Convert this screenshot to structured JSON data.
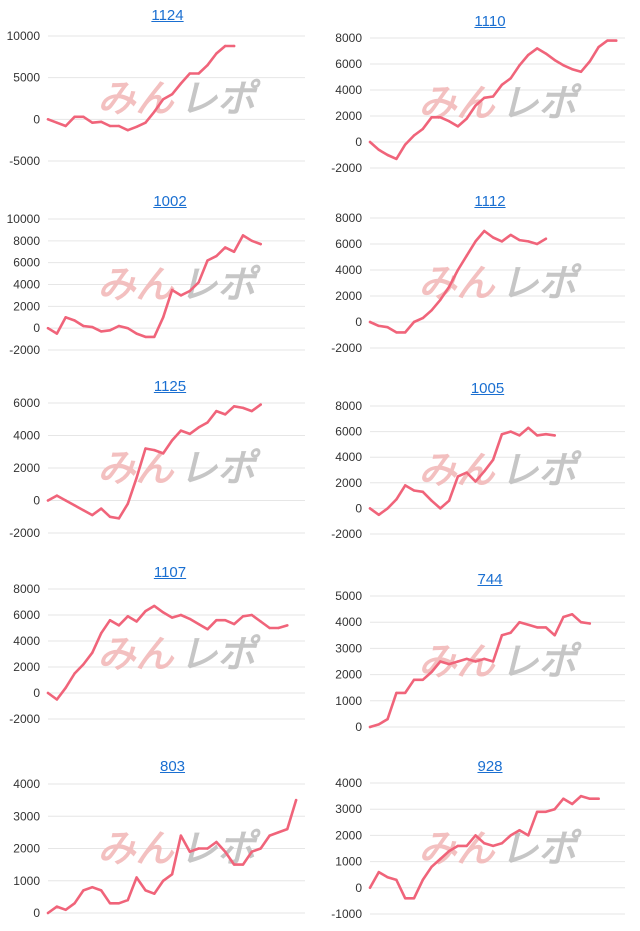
{
  "colors": {
    "line": "#f0647a",
    "grid": "#e6e6e6",
    "link": "#1a6fd1",
    "watermark_left": "#f2b6b6",
    "watermark_right": "#bdbdbd"
  },
  "watermark": {
    "left": "みん",
    "right": "レポ"
  },
  "chart_data": [
    {
      "type": "line",
      "title": "1124",
      "yticks": [
        10000,
        5000,
        0,
        -5000
      ],
      "ylim": [
        -5000,
        10000
      ],
      "values": [
        0,
        -400,
        -800,
        300,
        300,
        -400,
        -300,
        -800,
        -800,
        -1300,
        -900,
        -400,
        900,
        2400,
        3000,
        4300,
        5500,
        5500,
        6500,
        7900,
        8800,
        8800
      ]
    },
    {
      "type": "line",
      "title": "1110",
      "yticks": [
        8000,
        6000,
        4000,
        2000,
        0,
        -2000
      ],
      "ylim": [
        -2000,
        8000
      ],
      "values": [
        0,
        -600,
        -1000,
        -1300,
        -200,
        500,
        1000,
        1900,
        1900,
        1600,
        1200,
        1800,
        2800,
        3400,
        3500,
        4400,
        4900,
        5900,
        6700,
        7200,
        6800,
        6300,
        5900,
        5600,
        5400,
        6200,
        7300,
        7800,
        7800
      ]
    },
    {
      "type": "line",
      "title": "1002",
      "yticks": [
        10000,
        8000,
        6000,
        4000,
        2000,
        0,
        -2000
      ],
      "ylim": [
        -2000,
        10000
      ],
      "values": [
        0,
        -500,
        1000,
        700,
        200,
        100,
        -300,
        -200,
        200,
        0,
        -500,
        -800,
        -800,
        1000,
        3500,
        3000,
        3400,
        4200,
        6200,
        6600,
        7400,
        7000,
        8500,
        8000,
        7700
      ]
    },
    {
      "type": "line",
      "title": "1112",
      "yticks": [
        8000,
        6000,
        4000,
        2000,
        0,
        -2000
      ],
      "ylim": [
        -2000,
        8000
      ],
      "values": [
        0,
        -300,
        -400,
        -800,
        -800,
        0,
        300,
        900,
        1700,
        2700,
        4000,
        5100,
        6200,
        7000,
        6500,
        6200,
        6700,
        6300,
        6200,
        6000,
        6400
      ]
    },
    {
      "type": "line",
      "title": "1125",
      "yticks": [
        6000,
        4000,
        2000,
        0,
        -2000
      ],
      "ylim": [
        -2000,
        6000
      ],
      "values": [
        0,
        300,
        0,
        -300,
        -600,
        -900,
        -500,
        -1000,
        -1100,
        -200,
        1400,
        3200,
        3100,
        2900,
        3700,
        4300,
        4100,
        4500,
        4800,
        5500,
        5300,
        5800,
        5700,
        5500,
        5900
      ]
    },
    {
      "type": "line",
      "title": "1005",
      "yticks": [
        8000,
        6000,
        4000,
        2000,
        0,
        -2000
      ],
      "ylim": [
        -2000,
        8000
      ],
      "values": [
        0,
        -500,
        0,
        700,
        1800,
        1400,
        1300,
        600,
        0,
        600,
        2500,
        2800,
        2100,
        2900,
        3800,
        5800,
        6000,
        5700,
        6300,
        5700,
        5800,
        5700
      ]
    },
    {
      "type": "line",
      "title": "1107",
      "yticks": [
        8000,
        6000,
        4000,
        2000,
        0,
        -2000
      ],
      "ylim": [
        -2000,
        8000
      ],
      "values": [
        0,
        -500,
        400,
        1500,
        2200,
        3100,
        4600,
        5600,
        5200,
        5900,
        5500,
        6300,
        6700,
        6200,
        5800,
        6000,
        5700,
        5300,
        4900,
        5600,
        5600,
        5300,
        5900,
        6000,
        5500,
        5000,
        5000,
        5200
      ]
    },
    {
      "type": "line",
      "title": "744",
      "yticks": [
        5000,
        4000,
        3000,
        2000,
        1000,
        0
      ],
      "ylim": [
        0,
        5000
      ],
      "values": [
        0,
        100,
        300,
        1300,
        1300,
        1800,
        1800,
        2100,
        2500,
        2400,
        2500,
        2600,
        2500,
        2600,
        2500,
        3500,
        3600,
        4000,
        3900,
        3800,
        3800,
        3500,
        4200,
        4300,
        4000,
        3950
      ]
    },
    {
      "type": "line",
      "title": "803",
      "yticks": [
        4000,
        3000,
        2000,
        1000,
        0
      ],
      "ylim": [
        0,
        4000
      ],
      "values": [
        0,
        200,
        100,
        300,
        700,
        800,
        700,
        300,
        300,
        400,
        1100,
        700,
        600,
        1000,
        1200,
        2400,
        1900,
        2000,
        2000,
        2200,
        1900,
        1500,
        1500,
        1900,
        2000,
        2400,
        2500,
        2600,
        3500
      ]
    },
    {
      "type": "line",
      "title": "928",
      "yticks": [
        4000,
        3000,
        2000,
        1000,
        0,
        -1000
      ],
      "ylim": [
        -1000,
        4000
      ],
      "values": [
        0,
        600,
        400,
        300,
        -400,
        -400,
        300,
        800,
        1100,
        1400,
        1600,
        1600,
        2000,
        1700,
        1600,
        1700,
        2000,
        2200,
        2000,
        2900,
        2900,
        3000,
        3400,
        3200,
        3500,
        3400,
        3400
      ]
    }
  ]
}
